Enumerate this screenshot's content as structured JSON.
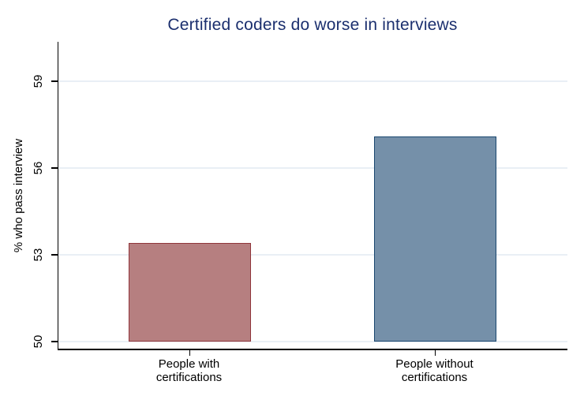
{
  "chart_data": {
    "type": "bar",
    "title": "Certified coders do worse in interviews",
    "ylabel": "% who pass interview",
    "xlabel": "",
    "categories": [
      "People with\ncertifications",
      "People without\ncertifications"
    ],
    "values": [
      53.4,
      57.1
    ],
    "yticks": [
      50,
      53,
      56,
      59
    ],
    "ylim": [
      50,
      60.4
    ],
    "grid": true,
    "legend_position": "none",
    "bar_colors": [
      {
        "fill": "#b67f80",
        "stroke": "#90353b"
      },
      {
        "fill": "#7590a9",
        "stroke": "#1a476f"
      }
    ],
    "title_color": "#1b2f6e",
    "gridline_color": "#e9eff5",
    "axis_color": "#000000",
    "background_color": "#ffffff"
  }
}
